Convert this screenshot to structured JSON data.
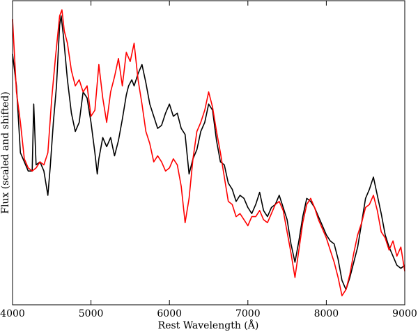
{
  "chart_data": {
    "type": "line",
    "xlabel": "Rest Wavelength (Å)",
    "ylabel": "Flux (scaled and shifted)",
    "xlim": [
      4000,
      9000
    ],
    "ylim": [
      0,
      1
    ],
    "xticks": [
      4000,
      5000,
      6000,
      7000,
      8000,
      9000
    ],
    "xtick_labels": [
      "4000",
      "5000",
      "6000",
      "7000",
      "8000",
      "9000"
    ],
    "yticks_shown": false,
    "grid": false,
    "legend": "none",
    "series": [
      {
        "color": "#000000",
        "x": [
          4000,
          4050,
          4100,
          4150,
          4200,
          4250,
          4270,
          4300,
          4350,
          4400,
          4450,
          4480,
          4520,
          4560,
          4600,
          4620,
          4650,
          4700,
          4750,
          4800,
          4850,
          4900,
          4950,
          5000,
          5050,
          5080,
          5100,
          5150,
          5200,
          5250,
          5300,
          5350,
          5400,
          5450,
          5480,
          5520,
          5550,
          5600,
          5650,
          5700,
          5750,
          5800,
          5850,
          5900,
          5950,
          6000,
          6050,
          6100,
          6150,
          6200,
          6250,
          6300,
          6350,
          6400,
          6450,
          6500,
          6550,
          6600,
          6650,
          6700,
          6750,
          6800,
          6850,
          6900,
          6950,
          7000,
          7050,
          7100,
          7150,
          7200,
          7250,
          7300,
          7350,
          7400,
          7450,
          7500,
          7550,
          7600,
          7650,
          7700,
          7750,
          7800,
          7850,
          7900,
          7950,
          8000,
          8050,
          8100,
          8150,
          8200,
          8250,
          8300,
          8350,
          8400,
          8450,
          8500,
          8550,
          8600,
          8650,
          8700,
          8750,
          8800,
          8850,
          8900,
          8950,
          9000
        ],
        "y": [
          0.825,
          0.72,
          0.5,
          0.47,
          0.44,
          0.44,
          0.66,
          0.46,
          0.47,
          0.44,
          0.36,
          0.45,
          0.6,
          0.72,
          0.92,
          0.95,
          0.88,
          0.74,
          0.63,
          0.57,
          0.6,
          0.7,
          0.68,
          0.6,
          0.5,
          0.43,
          0.48,
          0.55,
          0.52,
          0.55,
          0.49,
          0.54,
          0.61,
          0.69,
          0.72,
          0.74,
          0.72,
          0.76,
          0.79,
          0.73,
          0.66,
          0.62,
          0.58,
          0.59,
          0.63,
          0.66,
          0.62,
          0.63,
          0.58,
          0.56,
          0.43,
          0.48,
          0.51,
          0.57,
          0.6,
          0.66,
          0.64,
          0.54,
          0.47,
          0.46,
          0.4,
          0.38,
          0.34,
          0.36,
          0.35,
          0.32,
          0.3,
          0.33,
          0.37,
          0.31,
          0.29,
          0.32,
          0.33,
          0.36,
          0.32,
          0.28,
          0.2,
          0.14,
          0.21,
          0.29,
          0.35,
          0.34,
          0.32,
          0.29,
          0.26,
          0.23,
          0.21,
          0.2,
          0.15,
          0.08,
          0.05,
          0.09,
          0.14,
          0.19,
          0.27,
          0.35,
          0.38,
          0.42,
          0.36,
          0.3,
          0.23,
          0.19,
          0.16,
          0.13,
          0.12,
          0.13
        ]
      },
      {
        "color": "#ff0000",
        "x": [
          4000,
          4050,
          4100,
          4150,
          4200,
          4250,
          4300,
          4350,
          4400,
          4450,
          4500,
          4550,
          4600,
          4630,
          4660,
          4700,
          4750,
          4800,
          4850,
          4900,
          4950,
          5000,
          5050,
          5100,
          5150,
          5200,
          5250,
          5300,
          5350,
          5400,
          5450,
          5500,
          5550,
          5600,
          5650,
          5700,
          5750,
          5800,
          5850,
          5900,
          5950,
          6000,
          6050,
          6100,
          6150,
          6200,
          6250,
          6300,
          6350,
          6400,
          6450,
          6500,
          6550,
          6600,
          6650,
          6700,
          6750,
          6800,
          6850,
          6900,
          6950,
          7000,
          7050,
          7100,
          7150,
          7200,
          7250,
          7300,
          7350,
          7400,
          7450,
          7500,
          7550,
          7600,
          7650,
          7700,
          7750,
          7800,
          7850,
          7900,
          7950,
          8000,
          8050,
          8100,
          8150,
          8200,
          8250,
          8300,
          8350,
          8400,
          8450,
          8500,
          8550,
          8600,
          8650,
          8700,
          8750,
          8800,
          8850,
          8900,
          8950,
          9000
        ],
        "y": [
          0.94,
          0.7,
          0.6,
          0.48,
          0.45,
          0.44,
          0.45,
          0.47,
          0.46,
          0.5,
          0.68,
          0.82,
          0.95,
          0.97,
          0.9,
          0.86,
          0.77,
          0.72,
          0.74,
          0.7,
          0.72,
          0.62,
          0.64,
          0.79,
          0.68,
          0.6,
          0.7,
          0.75,
          0.81,
          0.72,
          0.83,
          0.8,
          0.86,
          0.74,
          0.66,
          0.57,
          0.53,
          0.47,
          0.49,
          0.47,
          0.44,
          0.45,
          0.48,
          0.46,
          0.39,
          0.27,
          0.35,
          0.48,
          0.57,
          0.6,
          0.64,
          0.7,
          0.65,
          0.57,
          0.5,
          0.42,
          0.34,
          0.33,
          0.29,
          0.3,
          0.28,
          0.26,
          0.29,
          0.29,
          0.31,
          0.28,
          0.27,
          0.3,
          0.33,
          0.34,
          0.31,
          0.24,
          0.17,
          0.09,
          0.18,
          0.27,
          0.33,
          0.35,
          0.32,
          0.28,
          0.25,
          0.22,
          0.18,
          0.14,
          0.09,
          0.03,
          0.05,
          0.1,
          0.17,
          0.23,
          0.27,
          0.32,
          0.33,
          0.36,
          0.31,
          0.24,
          0.22,
          0.18,
          0.21,
          0.16,
          0.19,
          0.11
        ]
      }
    ]
  }
}
